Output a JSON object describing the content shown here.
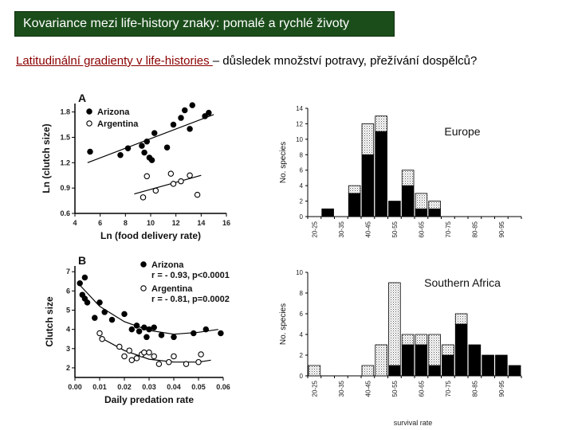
{
  "slide": {
    "title": "Kovariance mezi life-history znaky: pomalé a rychlé životy",
    "subtitle_highlight": "Latitudinální gradienty v life-histories ",
    "subtitle_rest": "– důsledek množství potravy, přežívání dospělců?"
  },
  "chart_data": [
    {
      "id": "A",
      "type": "scatter",
      "panel_label": "A",
      "xlabel": "Ln (food delivery rate)",
      "ylabel": "Ln (clutch size)",
      "xlim": [
        4,
        16
      ],
      "ylim": [
        0.6,
        1.9
      ],
      "xticks": [
        "4",
        "6",
        "8",
        "10",
        "12",
        "14",
        "16"
      ],
      "yticks": [
        "0.6",
        "0.9",
        "1.2",
        "1.5",
        "1.8"
      ],
      "legend": [
        "Arizona",
        "Argentina"
      ],
      "series": [
        {
          "name": "Arizona",
          "marker": "filled",
          "points": [
            [
              5.2,
              1.33
            ],
            [
              7.6,
              1.29
            ],
            [
              8.2,
              1.37
            ],
            [
              9.3,
              1.4
            ],
            [
              9.5,
              1.32
            ],
            [
              9.7,
              1.45
            ],
            [
              9.9,
              1.26
            ],
            [
              10.1,
              1.23
            ],
            [
              10.3,
              1.55
            ],
            [
              11.3,
              1.38
            ],
            [
              11.8,
              1.65
            ],
            [
              12.4,
              1.73
            ],
            [
              12.7,
              1.82
            ],
            [
              13.1,
              1.6
            ],
            [
              13.3,
              1.88
            ],
            [
              14.3,
              1.75
            ],
            [
              14.6,
              1.79
            ]
          ],
          "fit": [
            [
              5,
              1.2
            ],
            [
              15,
              1.77
            ]
          ]
        },
        {
          "name": "Argentina",
          "marker": "open",
          "points": [
            [
              9.4,
              0.79
            ],
            [
              9.7,
              1.04
            ],
            [
              10.4,
              0.87
            ],
            [
              11.6,
              1.07
            ],
            [
              11.8,
              0.95
            ],
            [
              12.4,
              0.98
            ],
            [
              13.1,
              1.05
            ],
            [
              13.7,
              0.82
            ]
          ],
          "fit": [
            [
              8.7,
              0.83
            ],
            [
              14,
              1.05
            ]
          ]
        }
      ]
    },
    {
      "id": "B",
      "type": "scatter",
      "panel_label": "B",
      "xlabel": "Daily predation rate",
      "ylabel": "Clutch size",
      "xlim": [
        0,
        0.06
      ],
      "ylim": [
        1.5,
        7.3
      ],
      "xticks": [
        "0.00",
        "0.01",
        "0.02",
        "0.03",
        "0.04",
        "0.05",
        "0.06"
      ],
      "yticks": [
        "2",
        "3",
        "4",
        "5",
        "6",
        "7"
      ],
      "legend": [
        {
          "name": "Arizona",
          "stat": "r = - 0.93, p<0.0001"
        },
        {
          "name": "Argentina",
          "stat": "r = - 0.81, p=0.0002"
        }
      ],
      "series": [
        {
          "name": "Arizona",
          "marker": "filled",
          "points": [
            [
              0.002,
              6.4
            ],
            [
              0.003,
              5.8
            ],
            [
              0.004,
              6.7
            ],
            [
              0.004,
              5.6
            ],
            [
              0.005,
              5.4
            ],
            [
              0.008,
              4.6
            ],
            [
              0.01,
              5.4
            ],
            [
              0.012,
              4.9
            ],
            [
              0.015,
              4.5
            ],
            [
              0.02,
              4.8
            ],
            [
              0.023,
              4.0
            ],
            [
              0.025,
              4.2
            ],
            [
              0.026,
              3.9
            ],
            [
              0.028,
              4.1
            ],
            [
              0.029,
              3.6
            ],
            [
              0.03,
              4.0
            ],
            [
              0.032,
              4.1
            ],
            [
              0.035,
              3.7
            ],
            [
              0.04,
              3.6
            ],
            [
              0.048,
              3.8
            ],
            [
              0.053,
              4.0
            ],
            [
              0.059,
              3.8
            ]
          ],
          "curve": [
            [
              0.002,
              6.3
            ],
            [
              0.01,
              5.2
            ],
            [
              0.02,
              4.4
            ],
            [
              0.03,
              3.95
            ],
            [
              0.04,
              3.75
            ],
            [
              0.05,
              3.85
            ],
            [
              0.058,
              4.0
            ]
          ]
        },
        {
          "name": "Argentina",
          "marker": "open",
          "points": [
            [
              0.01,
              3.8
            ],
            [
              0.011,
              3.5
            ],
            [
              0.018,
              3.1
            ],
            [
              0.02,
              2.6
            ],
            [
              0.022,
              2.9
            ],
            [
              0.023,
              2.4
            ],
            [
              0.025,
              2.5
            ],
            [
              0.027,
              2.7
            ],
            [
              0.028,
              2.8
            ],
            [
              0.03,
              2.8
            ],
            [
              0.032,
              2.6
            ],
            [
              0.034,
              2.2
            ],
            [
              0.038,
              2.3
            ],
            [
              0.04,
              2.6
            ],
            [
              0.045,
              2.2
            ],
            [
              0.05,
              2.3
            ],
            [
              0.051,
              2.7
            ]
          ],
          "curve": [
            [
              0.01,
              3.6
            ],
            [
              0.02,
              2.9
            ],
            [
              0.03,
              2.45
            ],
            [
              0.04,
              2.3
            ],
            [
              0.05,
              2.3
            ],
            [
              0.055,
              2.4
            ]
          ]
        }
      ]
    },
    {
      "id": "europe",
      "type": "bar",
      "stacked": true,
      "title": "Europe",
      "ylabel": "No. species",
      "xlabel": "",
      "ylim": [
        0,
        14
      ],
      "yticks": [
        "0",
        "2",
        "4",
        "6",
        "8",
        "10",
        "12",
        "14"
      ],
      "categories": [
        "20-25",
        "25-30",
        "30-35",
        "35-40",
        "40-45",
        "45-50",
        "50-55",
        "55-60",
        "60-65",
        "65-70",
        "70-75",
        "75-80",
        "80-85",
        "85-90",
        "90-95",
        "95-100"
      ],
      "shown_tick_labels": [
        "20-25",
        "30-35",
        "40-45",
        "50-55",
        "60-65",
        "70-75",
        "80-85",
        "90-95"
      ],
      "series": [
        {
          "name": "black",
          "values": [
            0,
            1,
            0,
            3,
            8,
            11,
            2,
            4,
            1,
            1,
            0,
            0,
            0,
            0,
            0,
            0
          ]
        },
        {
          "name": "stippled",
          "values": [
            0,
            0,
            0,
            1,
            4,
            2,
            0,
            2,
            2,
            1,
            0,
            0,
            0,
            0,
            0,
            0
          ]
        }
      ]
    },
    {
      "id": "southern_africa",
      "type": "bar",
      "stacked": true,
      "title": "Southern Africa",
      "ylabel": "No. species",
      "xlabel": "survival rate",
      "ylim": [
        0,
        10
      ],
      "yticks": [
        "0",
        "2",
        "4",
        "6",
        "8",
        "10"
      ],
      "categories": [
        "20-25",
        "25-30",
        "30-35",
        "35-40",
        "40-45",
        "45-50",
        "50-55",
        "55-60",
        "60-65",
        "65-70",
        "70-75",
        "75-80",
        "80-85",
        "85-90",
        "90-95",
        "95-100"
      ],
      "shown_tick_labels": [
        "20-25",
        "30-35",
        "40-45",
        "50-55",
        "60-65",
        "70-75",
        "80-85",
        "90-95"
      ],
      "series": [
        {
          "name": "black",
          "values": [
            0,
            0,
            0,
            0,
            0,
            0,
            1,
            3,
            3,
            1,
            2,
            5,
            3,
            2,
            2,
            1
          ]
        },
        {
          "name": "stippled",
          "values": [
            1,
            0,
            0,
            0,
            1,
            3,
            8,
            1,
            1,
            3,
            1,
            1,
            0,
            0,
            0,
            0
          ]
        }
      ]
    }
  ]
}
